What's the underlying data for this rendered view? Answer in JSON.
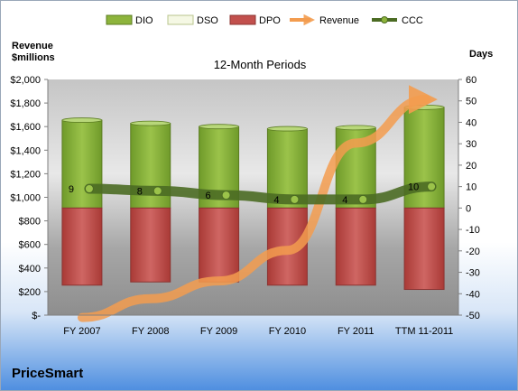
{
  "company": "PriceSmart",
  "chart_data": {
    "type": "bar",
    "title": "12-Month Periods",
    "y_left_label": [
      "Revenue",
      "$millions"
    ],
    "y_right_label": "Days",
    "categories": [
      "FY 2007",
      "FY 2008",
      "FY 2009",
      "FY 2010",
      "FY 2011",
      "TTM 11-2011"
    ],
    "y_left_ticks": [
      "$-",
      "$200",
      "$400",
      "$600",
      "$800",
      "$1,000",
      "$1,200",
      "$1,400",
      "$1,600",
      "$1,800",
      "$2,000"
    ],
    "y_left_range": [
      0,
      2000
    ],
    "y_right_ticks": [
      "-50",
      "-40",
      "-30",
      "-20",
      "-10",
      "0",
      "10",
      "20",
      "30",
      "40",
      "50",
      "60"
    ],
    "y_right_range": [
      -50,
      60
    ],
    "grid": false,
    "legend_position": "top",
    "legend": [
      "DIO",
      "DSO",
      "DPO",
      "Revenue",
      "CCC"
    ],
    "series": [
      {
        "name": "DIO",
        "axis": "right",
        "values": [
          41,
          39.5,
          38,
          37,
          37.5,
          47
        ]
      },
      {
        "name": "DSO",
        "axis": "right",
        "values": [
          0,
          0,
          0,
          0,
          0,
          0
        ]
      },
      {
        "name": "DPO",
        "axis": "right",
        "values": [
          -36,
          -34.5,
          -34.5,
          -36,
          -36,
          -38
        ]
      },
      {
        "name": "Revenue",
        "axis": "left",
        "values": [
          -20,
          140,
          290,
          550,
          1460,
          1830
        ]
      },
      {
        "name": "CCC",
        "axis": "right",
        "values": [
          9,
          8,
          6,
          4,
          4,
          10
        ]
      }
    ],
    "ccc_labels": [
      "9",
      "8",
      "6",
      "4",
      "4",
      "10"
    ],
    "colors": {
      "DIO": "#8db43c",
      "DSO": "#f5f8e4",
      "DPO": "#c2504d",
      "Revenue": "#f39c4f",
      "CCC": "#4b6b23"
    }
  }
}
